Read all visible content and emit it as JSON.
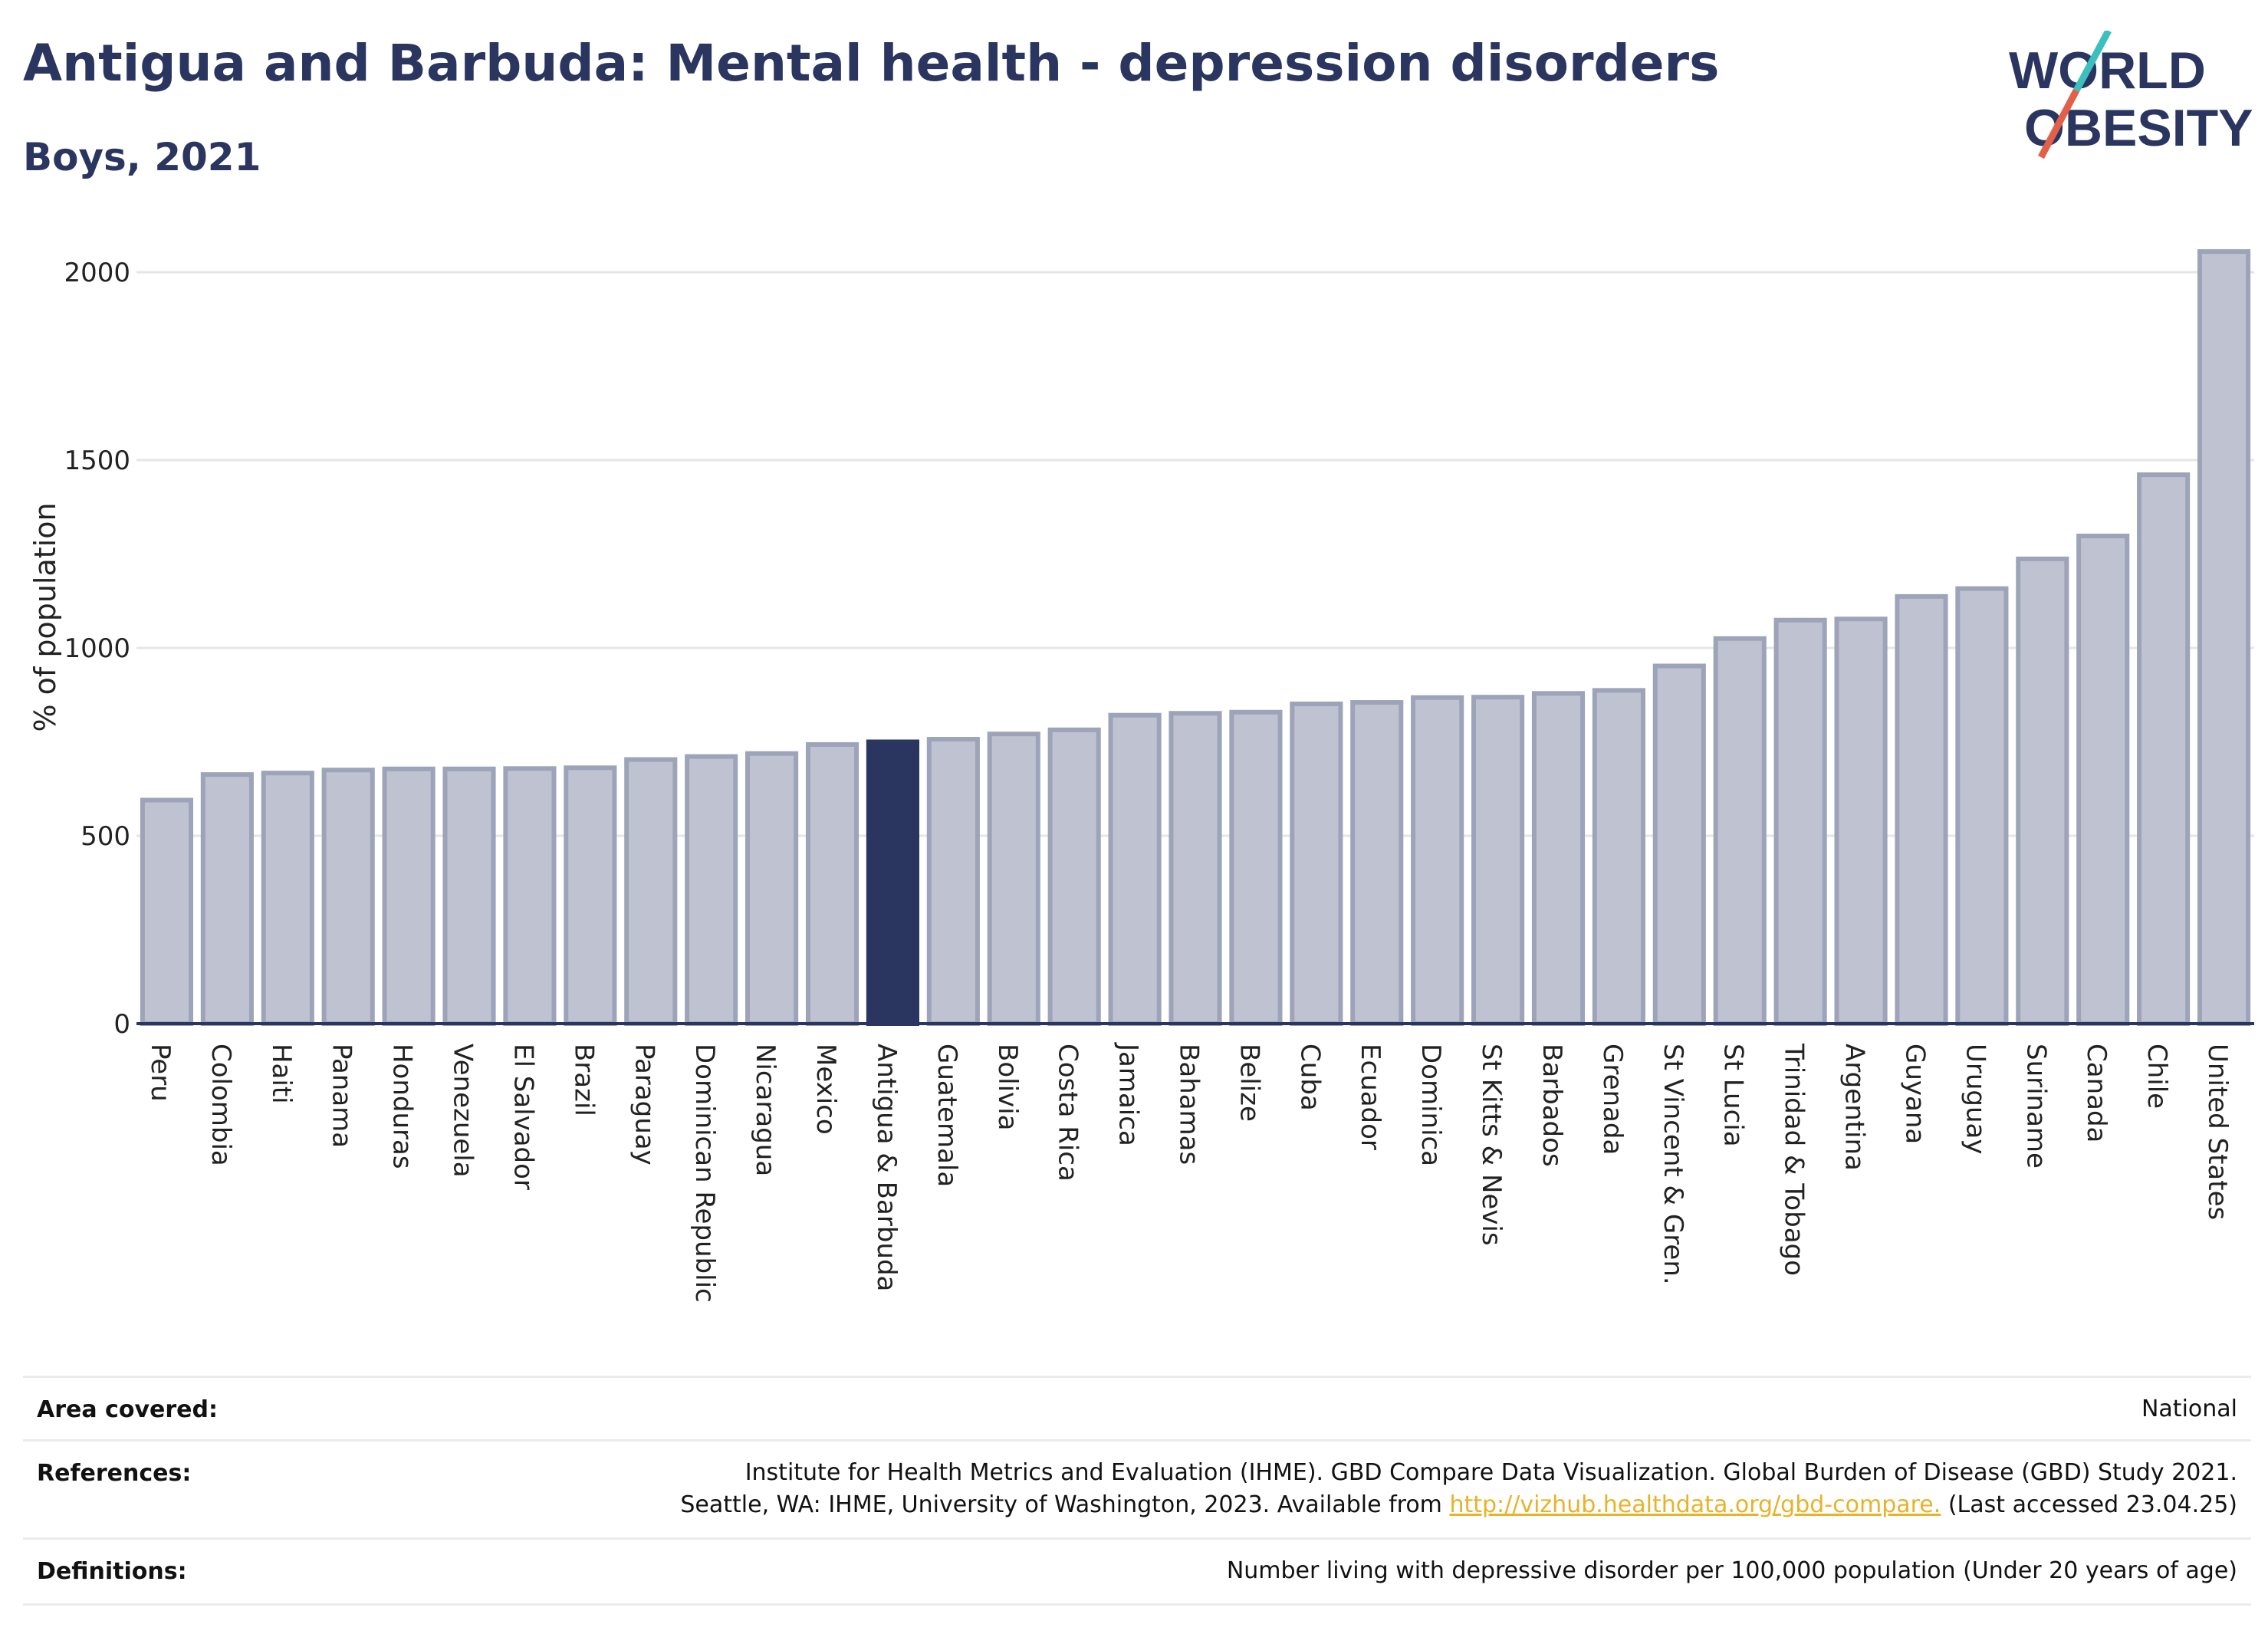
{
  "header": {
    "title": "Antigua and Barbuda: Mental health - depression disorders",
    "subtitle": "Boys, 2021"
  },
  "logo": {
    "line1": "WORLD",
    "line2": "OBESITY",
    "colors": {
      "text": "#2a3560",
      "slash_teal": "#3bbfbf",
      "slash_red": "#e2604a"
    }
  },
  "chart_data": {
    "type": "bar",
    "ylabel": "% of population",
    "ylim": [
      0,
      2150
    ],
    "yticks": [
      0,
      500,
      1000,
      1500,
      2000
    ],
    "grid": true,
    "highlight": "Antigua & Barbuda",
    "colors": {
      "bar": "#bfc3d1",
      "bar_edge": "#9da3b9",
      "highlight": "#2a3560",
      "axis": "#2a3560",
      "grid": "#e6e6e6"
    },
    "categories": [
      "Peru",
      "Colombia",
      "Haiti",
      "Panama",
      "Honduras",
      "Venezuela",
      "El Salvador",
      "Brazil",
      "Paraguay",
      "Dominican Republic",
      "Nicaragua",
      "Mexico",
      "Antigua & Barbuda",
      "Guatemala",
      "Bolivia",
      "Costa Rica",
      "Jamaica",
      "Bahamas",
      "Belize",
      "Cuba",
      "Ecuador",
      "Dominica",
      "St Kitts & Nevis",
      "Barbados",
      "Grenada",
      "St Vincent & Gren.",
      "St Lucia",
      "Trinidad & Tobago",
      "Argentina",
      "Guyana",
      "Uruguay",
      "Suriname",
      "Canada",
      "Chile",
      "United States"
    ],
    "values": [
      595,
      663,
      667,
      675,
      678,
      678,
      679,
      681,
      703,
      711,
      719,
      743,
      750,
      757,
      771,
      782,
      821,
      826,
      829,
      851,
      855,
      868,
      869,
      879,
      887,
      952,
      1025,
      1074,
      1077,
      1137,
      1158,
      1237,
      1298,
      1461,
      2055
    ]
  },
  "meta": {
    "area_label": "Area covered:",
    "area_value": "National",
    "references_label": "References:",
    "references_line1": "Institute for Health Metrics and Evaluation (IHME). GBD Compare Data Visualization. Global Burden of Disease (GBD) Study 2021.",
    "references_line2_pre": "Seattle, WA: IHME, University of Washington, 2023. Available from ",
    "references_link": "http://vizhub.healthdata.org/gbd-compare.",
    "references_line2_post": " (Last accessed 23.04.25)",
    "definitions_label": "Definitions:",
    "definitions_value": "Number living with depressive disorder per 100,000 population (Under 20 years of age)"
  }
}
